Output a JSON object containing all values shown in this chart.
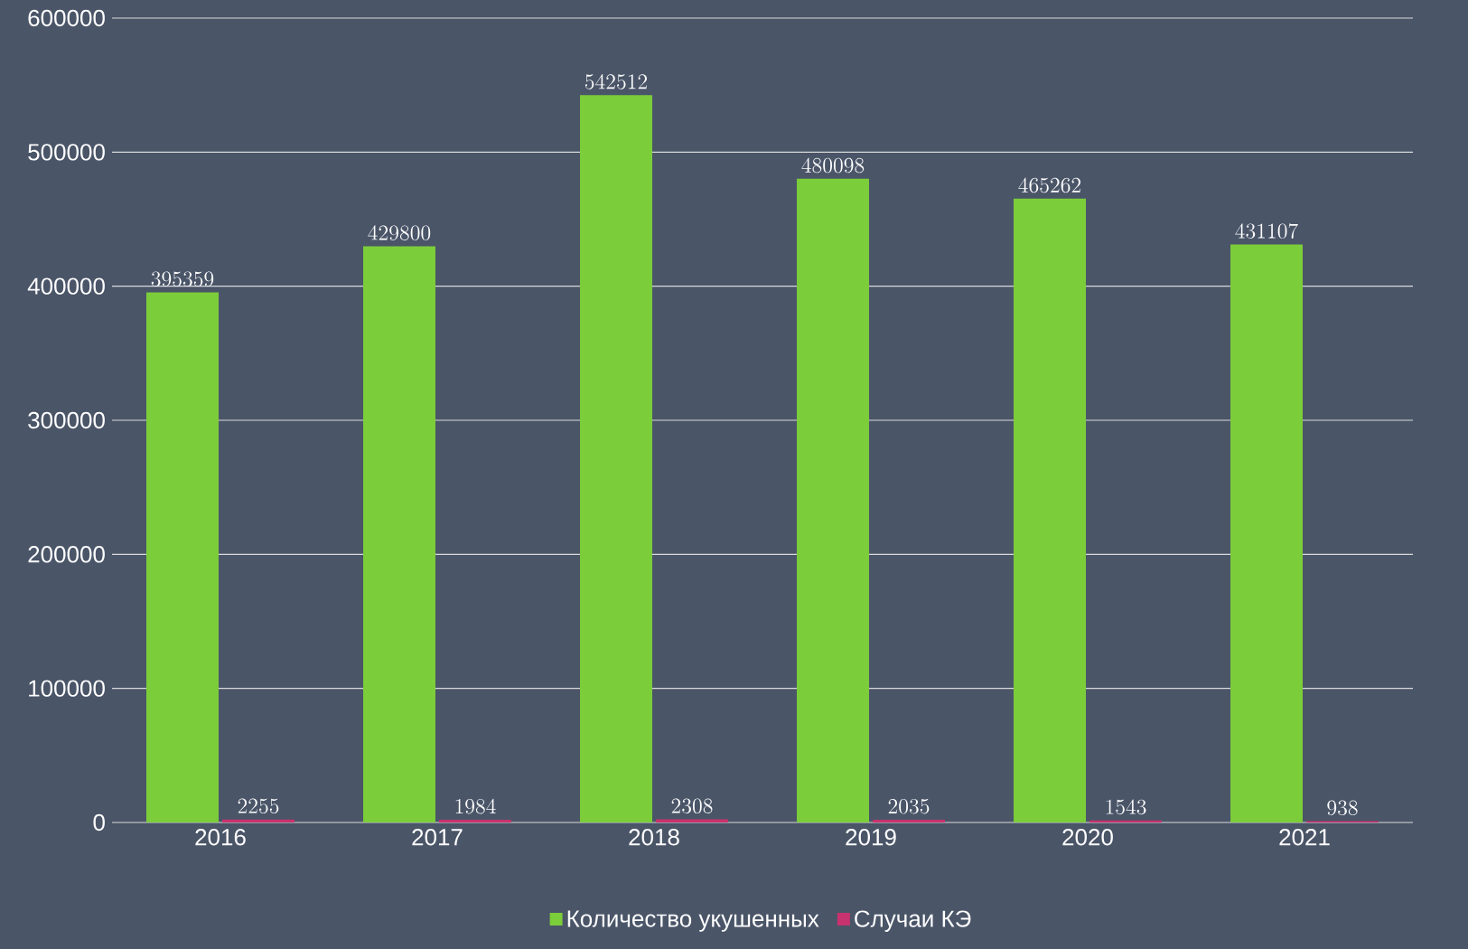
{
  "chart_data": {
    "type": "bar",
    "categories": [
      "2016",
      "2017",
      "2018",
      "2019",
      "2020",
      "2021"
    ],
    "series": [
      {
        "name": "Количество укушенных",
        "color": "#7ccd3a",
        "values": [
          395359,
          429800,
          542512,
          480098,
          465262,
          431107
        ]
      },
      {
        "name": "Случаи КЭ",
        "color": "#c8326e",
        "values": [
          2255,
          1984,
          2308,
          2035,
          1543,
          938
        ]
      }
    ],
    "ylim": [
      0,
      600000
    ],
    "yticks": [
      0,
      100000,
      200000,
      300000,
      400000,
      500000,
      600000
    ],
    "grid": "y",
    "legend": "bottom",
    "data_labels": true
  }
}
